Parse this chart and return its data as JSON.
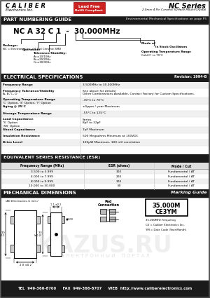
{
  "title_company": "C A L I B E R",
  "title_sub": "Electronics Inc.",
  "title_badge_line1": "Lead Free",
  "title_badge_line2": "RoHS Compliant",
  "series_name": "NC Series",
  "series_desc": "2.0mm 4 Pin Ceramic Surface Mount Crystal",
  "section1_title": "PART NUMBERING GUIDE",
  "section1_right": "Environmental Mechanical Specifications on page F5",
  "part_example": "NC A 32 C 1  -  30.000MHz",
  "section2_title": "ELECTRICAL SPECIFICATIONS",
  "section2_right": "Revision: 1994-B",
  "elec_labels": [
    "Frequency Range",
    "Frequency Tolerance/Stability\nA, B, C, D",
    "Operating Temperature Range\n'C' Option, 'E' Option, 'F' Option",
    "Aging @ 25°C",
    "Storage Temperature Range",
    "Load Capacitance\n'S' Option\n'XX' Option",
    "Shunt Capacitance",
    "Insulation Resistance",
    "Drive Level"
  ],
  "elec_values": [
    "3.500MHz to 30.000MHz",
    "See above for details!\nOther Combinations Available, Contact Factory for Custom Specifications.",
    "-30°C to 70°C",
    "±5ppm / year Maximum",
    "-55°C to 125°C",
    "Series\n8pF to 32pF",
    "7pF Maximum",
    "500 Megaohms Minimum at 100VDC",
    "100µW Maximum, 100 mV correlation"
  ],
  "section3_title": "EQUIVALENT SERIES RESISTANCE (ESR)",
  "esr_headers": [
    "Frequency Range (MHz)",
    "ESR (ohms)",
    "Mode / Cut"
  ],
  "esr_rows": [
    [
      "3.500 to 3.999",
      "300",
      "Fundamental / AT"
    ],
    [
      "4.000 to 7.999",
      "200",
      "Fundamental / AT"
    ],
    [
      "8.000 to 9.999",
      "200",
      "Fundamental / AT"
    ],
    [
      "10.000 to 30.000",
      "80",
      "Fundamental / AT"
    ]
  ],
  "section4_title": "MECHANICAL DIMENSIONS",
  "section4_right": "Marking Guide",
  "marking_box_line1": "35.000M",
  "marking_box_line2": "CE3YM",
  "marking_notes": [
    "35.000MHz Frequency",
    "CE = Caliber Electronics Inc.",
    "YM = Date Code (Year/Month)"
  ],
  "footer": "TEL  949-366-8700     FAX  949-366-8707     WEB  http://www.caliberelectronics.com",
  "bg_color": "#ffffff",
  "dark_bg": "#1a1a1a",
  "light_row": "#f0f0f0",
  "badge_red": "#cc2222",
  "border_gray": "#888888"
}
